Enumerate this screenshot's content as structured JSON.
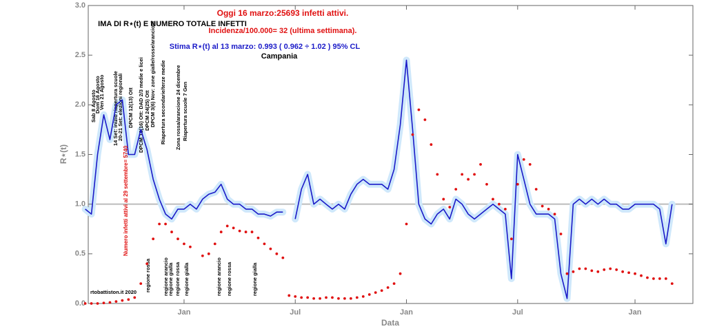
{
  "chart_data": {
    "type": "line",
    "title": "IMA DI R⋆(t) E NUMERO TOTALE INFETTI",
    "subtitles": [
      "Oggi 16 marzo:25693 infetti attivi.",
      "Incidenza/100.000= 32 (ultima settimana).",
      "Stima R⋆(t) al 13 marzo: 0.993 ( 0.962 ÷ 1.02 ) 95% CL",
      "Campania"
    ],
    "x_label": "Data",
    "y_label": "R⋆(t)",
    "categories": [
      null,
      null,
      null,
      null,
      null,
      null,
      null,
      null,
      null,
      null,
      null,
      null,
      null,
      null,
      null,
      null,
      "Jan",
      null,
      null,
      null,
      null,
      null,
      null,
      null,
      null,
      null,
      null,
      null,
      null,
      null,
      null,
      null,
      null,
      null,
      "Jul",
      null,
      null,
      null,
      null,
      null,
      null,
      null,
      null,
      null,
      null,
      null,
      null,
      null,
      null,
      null,
      null,
      null,
      "Jan",
      null,
      null,
      null,
      null,
      null,
      null,
      null,
      null,
      null,
      null,
      null,
      null,
      null,
      null,
      null,
      null,
      null,
      "Jul",
      null,
      null,
      null,
      null,
      null,
      null,
      null,
      null,
      null,
      null,
      null,
      null,
      null,
      null,
      null,
      null,
      null,
      null,
      "Jan",
      null,
      null,
      null,
      null,
      null,
      null
    ],
    "series": [
      {
        "name": "R⋆(t)",
        "color": "#1a1ac8",
        "band_color": "#cfe8fb",
        "marker": "line",
        "values": [
          0.95,
          0.9,
          1.5,
          1.9,
          1.65,
          2.0,
          2.05,
          1.5,
          1.5,
          1.75,
          1.55,
          1.25,
          1.05,
          0.9,
          0.85,
          0.95,
          0.95,
          1.0,
          0.95,
          1.05,
          1.1,
          1.12,
          1.2,
          1.05,
          1.0,
          1.0,
          0.95,
          0.95,
          0.9,
          0.9,
          0.88,
          0.92,
          0.92,
          null,
          0.85,
          1.15,
          1.3,
          1.0,
          1.05,
          1.0,
          0.95,
          1.0,
          0.95,
          1.1,
          1.2,
          1.25,
          1.2,
          1.2,
          1.2,
          1.15,
          1.35,
          1.8,
          2.45,
          1.75,
          1.0,
          0.85,
          0.8,
          0.9,
          0.95,
          0.85,
          1.05,
          1.0,
          0.9,
          0.85,
          0.9,
          0.95,
          1.0,
          0.95,
          0.9,
          0.25,
          1.5,
          1.25,
          1.0,
          0.9,
          0.9,
          0.9,
          0.85,
          0.3,
          0.05,
          1.0,
          1.05,
          1.0,
          1.05,
          1.0,
          1.05,
          1.0,
          1.0,
          0.95,
          0.95,
          1.0,
          1.0,
          1.0,
          1.0,
          0.95,
          0.6,
          1.0
        ]
      },
      {
        "name": "Numero infetti attivi al 29 settembre= 5740",
        "color": "#e01010",
        "marker": "dots",
        "values": [
          0,
          0,
          0,
          0.005,
          0.01,
          0.02,
          0.03,
          0.04,
          0.06,
          0.2,
          0.4,
          0.65,
          0.8,
          0.8,
          0.72,
          0.65,
          0.6,
          0.57,
          null,
          0.48,
          0.5,
          0.6,
          0.72,
          0.78,
          0.76,
          0.73,
          0.72,
          0.72,
          0.66,
          0.6,
          0.55,
          0.5,
          0.46,
          0.08,
          0.07,
          0.06,
          0.06,
          0.05,
          0.05,
          0.06,
          0.06,
          0.05,
          0.05,
          0.05,
          0.06,
          0.07,
          0.09,
          0.11,
          0.13,
          0.16,
          0.2,
          0.3,
          0.8,
          1.7,
          1.95,
          1.85,
          1.6,
          1.3,
          1.05,
          0.97,
          1.15,
          1.3,
          1.25,
          1.3,
          1.4,
          1.2,
          1.05,
          1.0,
          0.95,
          0.65,
          1.2,
          1.45,
          1.4,
          1.15,
          0.98,
          0.95,
          0.9,
          0.7,
          0.3,
          0.32,
          0.35,
          0.35,
          0.33,
          0.32,
          0.34,
          0.35,
          0.34,
          0.32,
          0.31,
          0.3,
          0.28,
          0.26,
          0.25,
          0.25,
          0.25,
          0.2
        ]
      }
    ],
    "ylim": [
      0,
      3
    ],
    "yticks": [
      {
        "value": 0,
        "label": "0.0"
      },
      0.5,
      {
        "value": 1,
        "label": "1.0"
      },
      1.5,
      {
        "value": 2,
        "label": "2.0"
      },
      2.5,
      {
        "value": 3,
        "label": "3.0"
      }
    ],
    "reference_line": 1,
    "annotations": [
      "Sab 8 Agosto",
      "Dom 16 Agosto",
      "Ven 21 Agosto",
      "14 Set: inizio riapertura scuole",
      "20-21 Set: elezioni regionali",
      "DPCM 12(13) Ott",
      "DPCM 18(16) Ott: DAD 2/3 medie e licei",
      "DPCM 24(25) Ott",
      "DPCM 3(6) Nov: zone gialle/rosse/arancioni",
      "Riapertura secondarie/terze medie",
      "Zona rossa/arancione 24 dicembre",
      "Riapertura scuole 7 Gen",
      "regione rossa",
      "regione arancio",
      "regione gialla",
      "regione rossa",
      "regione gialla",
      "regione arancio",
      "regione rossa",
      "regione gialla",
      "rtobattiston.it 2020"
    ]
  }
}
